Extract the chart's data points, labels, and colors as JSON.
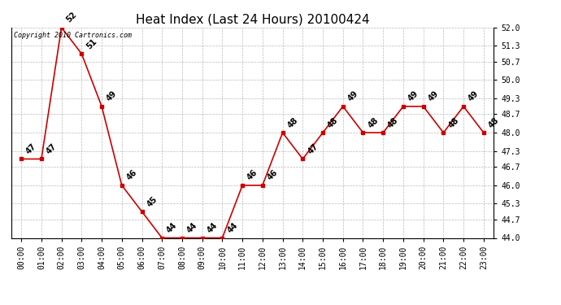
{
  "title": "Heat Index (Last 24 Hours) 20100424",
  "hours": [
    "00:00",
    "01:00",
    "02:00",
    "03:00",
    "04:00",
    "05:00",
    "06:00",
    "07:00",
    "08:00",
    "09:00",
    "10:00",
    "11:00",
    "12:00",
    "13:00",
    "14:00",
    "15:00",
    "16:00",
    "17:00",
    "18:00",
    "19:00",
    "20:00",
    "21:00",
    "22:00",
    "23:00"
  ],
  "values": [
    47,
    47,
    52,
    51,
    49,
    46,
    45,
    44,
    44,
    44,
    44,
    46,
    46,
    48,
    47,
    48,
    49,
    48,
    48,
    49,
    49,
    48,
    49,
    48
  ],
  "ylim_min": 44.0,
  "ylim_max": 52.0,
  "yticks": [
    44.0,
    44.7,
    45.3,
    46.0,
    46.7,
    47.3,
    48.0,
    48.7,
    49.3,
    50.0,
    50.7,
    51.3,
    52.0
  ],
  "ytick_labels": [
    "44.0",
    "44.7",
    "45.3",
    "46.0",
    "46.7",
    "47.3",
    "48.0",
    "48.7",
    "49.3",
    "50.0",
    "50.7",
    "51.3",
    "52.0"
  ],
  "line_color": "#cc0000",
  "marker_color": "#cc0000",
  "bg_color": "#ffffff",
  "grid_color": "#bbbbbb",
  "copyright_text": "Copyright 2010 Cartronics.com",
  "title_fontsize": 11,
  "label_fontsize": 7,
  "tick_fontsize": 7,
  "copyright_fontsize": 6
}
